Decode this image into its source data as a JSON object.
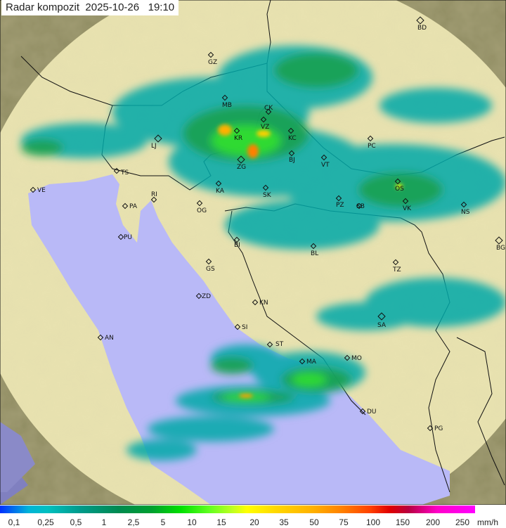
{
  "title": "Radar kompozit  2025-10-26   19:10",
  "colors": {
    "sea": "#b9b9f7",
    "land": "#e8e2b0",
    "outside": "#8f8c62",
    "border": "#111111"
  },
  "cities": [
    "GZ",
    "MB",
    "CK",
    "LJ",
    "KR",
    "VZ",
    "KC",
    "ZG",
    "BJ",
    "VT",
    "PC",
    "TS",
    "VE",
    "RI",
    "KA",
    "SK",
    "PZ",
    "SB",
    "OS",
    "VK",
    "NS",
    "PA",
    "OG",
    "PU",
    "BD",
    "BG",
    "BI",
    "BL",
    "GS",
    "ZD",
    "KN",
    "SI",
    "ST",
    "MA",
    "MO",
    "DU",
    "SA",
    "TZ",
    "AN",
    "PG"
  ],
  "legend": {
    "unit": "mm/h",
    "ticks": [
      "0,1",
      "0,25",
      "0,5",
      "1",
      "2,5",
      "5",
      "10",
      "15",
      "20",
      "35",
      "50",
      "75",
      "100",
      "150",
      "200",
      "250"
    ]
  }
}
